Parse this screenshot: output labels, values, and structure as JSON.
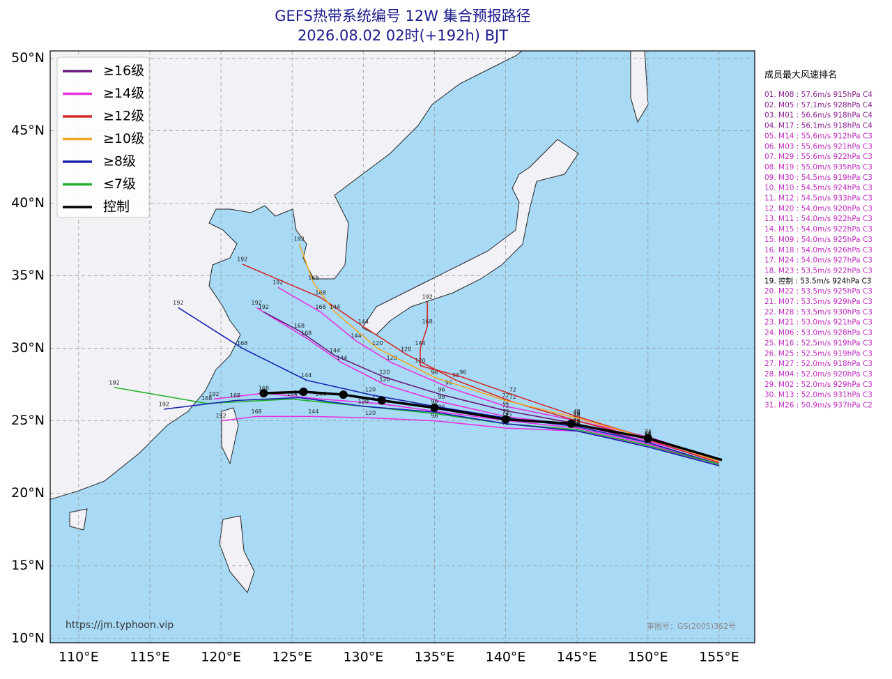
{
  "title": "GEFS热带系统编号 12W 集合预报路径",
  "subtitle": "2026.08.02 02时(+192h) BJT",
  "map": {
    "lon_range": [
      108,
      157.5
    ],
    "lat_range": [
      9.7,
      50.5
    ],
    "lat_ticks": [
      {
        "value": 50,
        "label": "50°N"
      },
      {
        "value": 45,
        "label": "45°N"
      },
      {
        "value": 40,
        "label": "40°N"
      },
      {
        "value": 35,
        "label": "35°N"
      },
      {
        "value": 30,
        "label": "30°N"
      },
      {
        "value": 25,
        "label": "25°N"
      },
      {
        "value": 20,
        "label": "20°N"
      },
      {
        "value": 15,
        "label": "15°N"
      },
      {
        "value": 10,
        "label": "10°N"
      }
    ],
    "lon_ticks": [
      {
        "value": 110,
        "label": "110°E"
      },
      {
        "value": 115,
        "label": "115°E"
      },
      {
        "value": 120,
        "label": "120°E"
      },
      {
        "value": 125,
        "label": "125°E"
      },
      {
        "value": 130,
        "label": "130°E"
      },
      {
        "value": 135,
        "label": "135°E"
      },
      {
        "value": 140,
        "label": "140°E"
      },
      {
        "value": 145,
        "label": "145°E"
      },
      {
        "value": 150,
        "label": "150°E"
      },
      {
        "value": 155,
        "label": "155°E"
      }
    ]
  },
  "legend": [
    {
      "label": "≥16级",
      "color": "#6b1a7b"
    },
    {
      "label": "≥14级",
      "color": "#e832e0"
    },
    {
      "label": "≥12级",
      "color": "#d22a2a"
    },
    {
      "label": "≥10级",
      "color": "#f5a623"
    },
    {
      "label": "≥8级",
      "color": "#1a23b0"
    },
    {
      "label": "≤7级",
      "color": "#22b02a"
    },
    {
      "label": "控制",
      "color": "#000000"
    }
  ],
  "tracks": [
    {
      "color": "#e832e0",
      "points": [
        [
          155,
          22.2
        ],
        [
          150,
          23.6
        ],
        [
          145,
          24.7
        ],
        [
          140,
          25.3
        ],
        [
          135.5,
          26.3
        ],
        [
          131.5,
          27.5
        ],
        [
          128.5,
          29
        ],
        [
          126,
          30.7
        ],
        [
          122.5,
          32.8
        ]
      ],
      "labels": [
        null,
        24,
        48,
        72,
        96,
        120,
        144,
        168,
        192
      ]
    },
    {
      "color": "#e832e0",
      "points": [
        [
          155,
          22
        ],
        [
          150,
          23.4
        ],
        [
          145,
          24.5
        ],
        [
          140.2,
          25
        ],
        [
          135.5,
          25.6
        ],
        [
          131,
          26.2
        ],
        [
          127,
          26.5
        ],
        [
          123,
          26.9
        ],
        [
          119.5,
          26.5
        ]
      ],
      "labels": [
        null,
        24,
        48,
        72,
        96,
        120,
        144,
        168,
        192
      ]
    },
    {
      "color": "#e832e0",
      "points": [
        [
          155,
          22.3
        ],
        [
          150,
          23.9
        ],
        [
          145,
          25
        ],
        [
          140,
          26
        ],
        [
          136,
          27.3
        ],
        [
          132,
          29
        ],
        [
          129.5,
          30.5
        ],
        [
          127,
          32.5
        ],
        [
          124,
          34.2
        ]
      ],
      "labels": [
        null,
        24,
        48,
        72,
        96,
        120,
        144,
        168,
        192
      ]
    },
    {
      "color": "#e832e0",
      "points": [
        [
          155,
          21.9
        ],
        [
          150,
          23.3
        ],
        [
          145,
          24.3
        ],
        [
          140,
          24.5
        ],
        [
          135,
          25
        ],
        [
          130.5,
          25.2
        ],
        [
          126.5,
          25.3
        ],
        [
          122.5,
          25.3
        ],
        [
          120,
          25
        ]
      ],
      "labels": [
        null,
        24,
        48,
        72,
        96,
        120,
        144,
        168,
        192
      ]
    },
    {
      "color": "#6b1a7b",
      "points": [
        [
          155,
          22
        ],
        [
          150,
          23.5
        ],
        [
          145,
          24.8
        ],
        [
          140,
          25.7
        ],
        [
          135.5,
          26.8
        ],
        [
          131.5,
          28
        ],
        [
          128,
          29.5
        ],
        [
          125.5,
          31.2
        ],
        [
          123,
          32.5
        ]
      ],
      "labels": [
        null,
        24,
        48,
        72,
        96,
        120,
        144,
        168,
        192
      ]
    },
    {
      "color": "#d22a2a",
      "points": [
        [
          155,
          22.1
        ],
        [
          150,
          23.7
        ],
        [
          145,
          25
        ],
        [
          140.5,
          26.3
        ],
        [
          136.5,
          27.8
        ],
        [
          133,
          29.6
        ],
        [
          130,
          31.5
        ],
        [
          127,
          33.5
        ],
        [
          121.5,
          35.8
        ]
      ],
      "labels": [
        null,
        24,
        48,
        72,
        96,
        120,
        144,
        168,
        192
      ]
    },
    {
      "color": "#d22a2a",
      "points": [
        [
          155,
          22.2
        ],
        [
          150,
          23.8
        ],
        [
          145,
          25.3
        ],
        [
          140.5,
          26.8
        ],
        [
          137,
          28
        ],
        [
          134,
          28.8
        ],
        [
          134,
          30
        ],
        [
          134.5,
          31.5
        ],
        [
          134.5,
          33.2
        ]
      ],
      "labels": [
        null,
        24,
        48,
        72,
        96,
        120,
        144,
        168,
        192
      ]
    },
    {
      "color": "#f5a623",
      "points": [
        [
          155,
          22.2
        ],
        [
          150,
          23.8
        ],
        [
          145,
          25.2
        ],
        [
          140,
          26.4
        ],
        [
          135,
          28
        ],
        [
          131,
          30
        ],
        [
          128,
          32.5
        ],
        [
          126.5,
          34.5
        ],
        [
          125.5,
          37.2
        ]
      ],
      "labels": [
        null,
        24,
        48,
        72,
        96,
        120,
        144,
        168,
        192
      ]
    },
    {
      "color": "#1a23b0",
      "points": [
        [
          155,
          22
        ],
        [
          150,
          23.5
        ],
        [
          145,
          24.6
        ],
        [
          140,
          25.2
        ],
        [
          135,
          26
        ],
        [
          130.5,
          26.8
        ],
        [
          126,
          27.8
        ],
        [
          121.5,
          30
        ],
        [
          117,
          32.8
        ]
      ],
      "labels": [
        null,
        24,
        48,
        72,
        96,
        120,
        144,
        168,
        192
      ]
    },
    {
      "color": "#22b02a",
      "points": [
        [
          155,
          22
        ],
        [
          150,
          23.3
        ],
        [
          145,
          24.4
        ],
        [
          140,
          24.8
        ],
        [
          135,
          25.5
        ],
        [
          130,
          26
        ],
        [
          125,
          26.5
        ],
        [
          119,
          26.2
        ],
        [
          112.5,
          27.3
        ]
      ],
      "labels": [
        null,
        24,
        48,
        72,
        96,
        120,
        144,
        168,
        192
      ]
    },
    {
      "color": "#1a23b0",
      "points": [
        [
          155,
          21.9
        ],
        [
          150,
          23.2
        ],
        [
          145,
          24.3
        ],
        [
          140,
          24.8
        ],
        [
          135,
          25.6
        ],
        [
          130,
          26
        ],
        [
          125.5,
          26.6
        ],
        [
          121,
          26.4
        ],
        [
          116,
          25.8
        ]
      ],
      "labels": [
        null,
        24,
        48,
        72,
        96,
        120,
        144,
        168,
        192
      ]
    },
    {
      "color": "#000000",
      "control": true,
      "points": [
        [
          155.2,
          22.3
        ],
        [
          150,
          23.8
        ],
        [
          144.6,
          24.8
        ],
        [
          140,
          25.1
        ],
        [
          135,
          25.9
        ],
        [
          131.3,
          26.4
        ],
        [
          128.6,
          26.8
        ],
        [
          125.8,
          27.0
        ],
        [
          123,
          26.9
        ]
      ]
    }
  ],
  "ranking": {
    "title": "成员最大风速排名",
    "items": [
      {
        "text": "01. M08 : 57.6m/s 915hPa C4",
        "color": "#8a1f8f"
      },
      {
        "text": "02. M05 : 57.1m/s 928hPa C4",
        "color": "#8a1f8f"
      },
      {
        "text": "03. M01 : 56.6m/s 918hPa C4",
        "color": "#8a1f8f"
      },
      {
        "text": "04. M17 : 56.1m/s 918hPa C4",
        "color": "#8a1f8f"
      },
      {
        "text": "05. M14 : 55.6m/s 912hPa C3",
        "color": "#c02cc0"
      },
      {
        "text": "06. M03 : 55.6m/s 921hPa C3",
        "color": "#c02cc0"
      },
      {
        "text": "07. M29 : 55.6m/s 922hPa C3",
        "color": "#c02cc0"
      },
      {
        "text": "08. M19 : 55.0m/s 935hPa C3",
        "color": "#c02cc0"
      },
      {
        "text": "09. M30 : 54.5m/s 919hPa C3",
        "color": "#c02cc0"
      },
      {
        "text": "10. M10 : 54.5m/s 924hPa C3",
        "color": "#c02cc0"
      },
      {
        "text": "11. M12 : 54.5m/s 933hPa C3",
        "color": "#c02cc0"
      },
      {
        "text": "12. M20 : 54.0m/s 920hPa C3",
        "color": "#c02cc0"
      },
      {
        "text": "13. M11 : 54.0m/s 922hPa C3",
        "color": "#c02cc0"
      },
      {
        "text": "14. M15 : 54.0m/s 922hPa C3",
        "color": "#c02cc0"
      },
      {
        "text": "15. M09 : 54.0m/s 925hPa C3",
        "color": "#c02cc0"
      },
      {
        "text": "16. M18 : 54.0m/s 926hPa C3",
        "color": "#c02cc0"
      },
      {
        "text": "17. M24 : 54.0m/s 927hPa C3",
        "color": "#c02cc0"
      },
      {
        "text": "18. M23 : 53.5m/s 922hPa C3",
        "color": "#c02cc0"
      },
      {
        "text": "19. 控制 : 53.5m/s 924hPa C3",
        "color": "#000000"
      },
      {
        "text": "20. M22 : 53.5m/s 925hPa C3",
        "color": "#c02cc0"
      },
      {
        "text": "21. M07 : 53.5m/s 929hPa C3",
        "color": "#c02cc0"
      },
      {
        "text": "22. M28 : 53.5m/s 930hPa C3",
        "color": "#c02cc0"
      },
      {
        "text": "23. M21 : 53.0m/s 921hPa C3",
        "color": "#c02cc0"
      },
      {
        "text": "24. M06 : 53.0m/s 928hPa C3",
        "color": "#c02cc0"
      },
      {
        "text": "25. M16 : 52.5m/s 919hPa C3",
        "color": "#c02cc0"
      },
      {
        "text": "26. M25 : 52.5m/s 919hPa C3",
        "color": "#c02cc0"
      },
      {
        "text": "27. M27 : 52.0m/s 918hPa C3",
        "color": "#c02cc0"
      },
      {
        "text": "28. M04 : 52.0m/s 920hPa C3",
        "color": "#c02cc0"
      },
      {
        "text": "29. M02 : 52.0m/s 929hPa C3",
        "color": "#c02cc0"
      },
      {
        "text": "30. M13 : 52.0m/s 931hPa C3",
        "color": "#c02cc0"
      },
      {
        "text": "31. M26 : 50.9m/s 937hPa C2",
        "color": "#c02cc0"
      }
    ]
  },
  "watermark": "https://jm.typhoon.vip",
  "approval": "审图号：GS(2005)362号"
}
